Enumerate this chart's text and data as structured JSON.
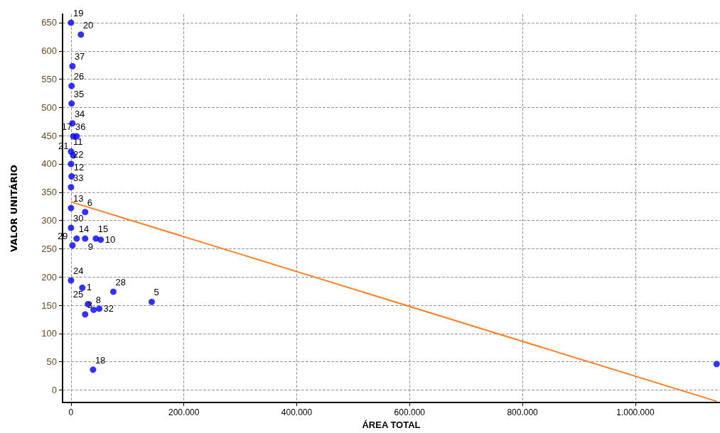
{
  "chart_data": {
    "type": "scatter",
    "xlabel": "ÁREA TOTAL",
    "ylabel": "VALOR UNITÁRIO",
    "xlim": [
      -15000,
      1150000
    ],
    "ylim": [
      -22,
      665
    ],
    "xticks": [
      0,
      {
        "value": 200000,
        "label": "200.000"
      },
      {
        "value": 400000,
        "label": "400.000"
      },
      {
        "value": 600000,
        "label": "600.000"
      },
      {
        "value": 800000,
        "label": "800.000"
      },
      {
        "value": 1000000,
        "label": "1.000.000"
      }
    ],
    "yticks": [
      0,
      50,
      100,
      150,
      200,
      250,
      300,
      350,
      400,
      450,
      500,
      550,
      600,
      650
    ],
    "grid": true,
    "series": [
      {
        "type": "scatter",
        "marker": "circle",
        "color": "#0000ff",
        "x": [
          0,
          17500,
          2500,
          1000,
          1000,
          2500,
          4000,
          10000,
          0,
          4000,
          0,
          1000,
          0,
          0,
          25000,
          0,
          10000,
          25000,
          44000,
          52600,
          2500,
          0,
          20000,
          75000,
          30000,
          25000,
          40000,
          50000,
          143000,
          39000,
          1144000
        ],
        "values": [
          650,
          629,
          573,
          538,
          507,
          472,
          449,
          449,
          422,
          415,
          400,
          378,
          359,
          322,
          315,
          287,
          268,
          268,
          268,
          266,
          256,
          194,
          181,
          174,
          152,
          134,
          142,
          144,
          156,
          36,
          46
        ]
      },
      {
        "type": "line",
        "marker": "none",
        "color": "#ff7f27",
        "x": [
          0,
          1144000
        ],
        "values": [
          333,
          -20
        ]
      }
    ],
    "annotations": [
      {
        "text": "19",
        "x": 0,
        "y": 650
      },
      {
        "text": "20",
        "x": 17500,
        "y": 629
      },
      {
        "text": "37",
        "x": 2500,
        "y": 573
      },
      {
        "text": "26",
        "x": 1000,
        "y": 538
      },
      {
        "text": "35",
        "x": 1000,
        "y": 507
      },
      {
        "text": "34",
        "x": 2500,
        "y": 472
      },
      {
        "text": "36",
        "x": 4000,
        "y": 449
      },
      {
        "text": "17",
        "x": 10000,
        "y": 449
      },
      {
        "text": "11",
        "x": 0,
        "y": 422
      },
      {
        "text": "21",
        "x": 4000,
        "y": 415
      },
      {
        "text": "22",
        "x": 0,
        "y": 400
      },
      {
        "text": "12",
        "x": 1000,
        "y": 378
      },
      {
        "text": "33",
        "x": 0,
        "y": 359
      },
      {
        "text": "13",
        "x": 0,
        "y": 322
      },
      {
        "text": "6",
        "x": 25000,
        "y": 315
      },
      {
        "text": "30",
        "x": 0,
        "y": 287
      },
      {
        "text": "14",
        "x": 10000,
        "y": 268
      },
      {
        "text": "9",
        "x": 25000,
        "y": 268
      },
      {
        "text": "15",
        "x": 44000,
        "y": 268
      },
      {
        "text": "10",
        "x": 52600,
        "y": 266
      },
      {
        "text": "29",
        "x": 2500,
        "y": 256
      },
      {
        "text": "24",
        "x": 0,
        "y": 194
      },
      {
        "text": "1",
        "x": 20000,
        "y": 181
      },
      {
        "text": "28",
        "x": 75000,
        "y": 174
      },
      {
        "text": "25",
        "x": 30000,
        "y": 152
      },
      {
        "text": "3",
        "x": 25000,
        "y": 134
      },
      {
        "text": "8",
        "x": 40000,
        "y": 142
      },
      {
        "text": "32",
        "x": 50000,
        "y": 144
      },
      {
        "text": "5",
        "x": 143000,
        "y": 156
      },
      {
        "text": "18",
        "x": 39000,
        "y": 36
      }
    ]
  }
}
